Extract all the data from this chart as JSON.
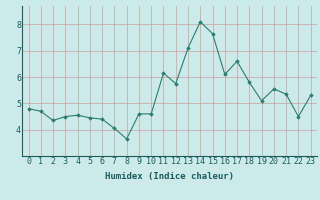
{
  "x": [
    0,
    1,
    2,
    3,
    4,
    5,
    6,
    7,
    8,
    9,
    10,
    11,
    12,
    13,
    14,
    15,
    16,
    17,
    18,
    19,
    20,
    21,
    22,
    23
  ],
  "y": [
    4.8,
    4.7,
    4.35,
    4.5,
    4.55,
    4.45,
    4.4,
    4.05,
    3.65,
    4.6,
    4.6,
    6.15,
    5.75,
    7.1,
    8.1,
    7.65,
    6.1,
    6.6,
    5.8,
    5.1,
    5.55,
    5.35,
    4.5,
    5.3
  ],
  "line_color": "#2d7d6e",
  "marker": "D",
  "marker_size": 1.8,
  "bg_color": "#cceaea",
  "grid_color": "#c9a0a0",
  "xlabel": "Humidex (Indice chaleur)",
  "xlim": [
    -0.5,
    23.5
  ],
  "ylim": [
    3.0,
    8.7
  ],
  "yticks": [
    4,
    5,
    6,
    7,
    8
  ],
  "xticks": [
    0,
    1,
    2,
    3,
    4,
    5,
    6,
    7,
    8,
    9,
    10,
    11,
    12,
    13,
    14,
    15,
    16,
    17,
    18,
    19,
    20,
    21,
    22,
    23
  ],
  "xlabel_fontsize": 6.5,
  "tick_fontsize": 6.0,
  "label_color": "#1a5c5c"
}
